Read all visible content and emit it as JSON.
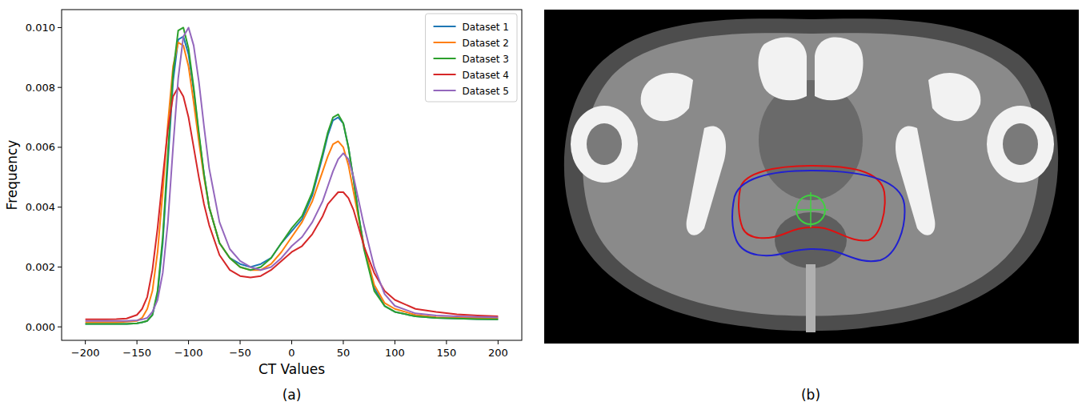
{
  "chart_data": {
    "type": "line",
    "x_label": "CT Values",
    "y_label": "Frequency",
    "panel_label": "(a)",
    "legend": "upper right",
    "grid": false,
    "xlim": [
      -223,
      223
    ],
    "xticks": [
      -200,
      -150,
      -100,
      -50,
      0,
      50,
      100,
      150,
      200
    ],
    "ylim": [
      -0.00045,
      0.0106
    ],
    "yticks": [
      {
        "value": 0,
        "label": "0.000"
      },
      {
        "value": 0.002,
        "label": "0.002"
      },
      {
        "value": 0.004,
        "label": "0.004"
      },
      {
        "value": 0.006,
        "label": "0.006"
      },
      {
        "value": 0.008,
        "label": "0.008"
      },
      {
        "value": 0.01,
        "label": "0.010"
      }
    ],
    "x": [
      -200,
      -190,
      -180,
      -170,
      -160,
      -150,
      -145,
      -140,
      -135,
      -130,
      -125,
      -120,
      -115,
      -110,
      -105,
      -100,
      -95,
      -90,
      -85,
      -80,
      -70,
      -60,
      -50,
      -40,
      -30,
      -20,
      -10,
      0,
      10,
      20,
      30,
      35,
      40,
      45,
      50,
      55,
      60,
      65,
      70,
      80,
      90,
      100,
      120,
      140,
      160,
      180,
      200
    ],
    "series": [
      {
        "name": "Dataset 1",
        "color": "#1f77b4",
        "values": [
          0.0001,
          0.0001,
          0.0001,
          0.0001,
          0.0001,
          0.00012,
          0.00015,
          0.0002,
          0.0004,
          0.0011,
          0.0028,
          0.0055,
          0.0082,
          0.0096,
          0.0097,
          0.0091,
          0.0079,
          0.0064,
          0.0051,
          0.004,
          0.0028,
          0.0023,
          0.0021,
          0.002,
          0.0021,
          0.0023,
          0.0028,
          0.0032,
          0.0036,
          0.0044,
          0.0057,
          0.0064,
          0.0069,
          0.007,
          0.0068,
          0.006,
          0.0049,
          0.0037,
          0.0027,
          0.0013,
          0.0007,
          0.0005,
          0.00035,
          0.0003,
          0.00028,
          0.00026,
          0.00025
        ]
      },
      {
        "name": "Dataset 2",
        "color": "#ff7f0e",
        "values": [
          0.00015,
          0.00015,
          0.00015,
          0.00015,
          0.00017,
          0.0002,
          0.0003,
          0.0006,
          0.0012,
          0.0025,
          0.0045,
          0.0068,
          0.0087,
          0.0095,
          0.0094,
          0.0087,
          0.0075,
          0.0062,
          0.005,
          0.004,
          0.0028,
          0.0023,
          0.002,
          0.0019,
          0.0019,
          0.0021,
          0.0025,
          0.003,
          0.0035,
          0.0042,
          0.0052,
          0.0057,
          0.0061,
          0.0062,
          0.006,
          0.0054,
          0.0045,
          0.0036,
          0.0027,
          0.0014,
          0.0008,
          0.0006,
          0.0004,
          0.00032,
          0.0003,
          0.0003,
          0.0003
        ]
      },
      {
        "name": "Dataset 3",
        "color": "#2ca02c",
        "values": [
          0.0001,
          0.0001,
          0.0001,
          0.0001,
          0.0001,
          0.00012,
          0.00015,
          0.0002,
          0.0004,
          0.0012,
          0.003,
          0.0058,
          0.0085,
          0.0099,
          0.01,
          0.0093,
          0.008,
          0.0065,
          0.0051,
          0.004,
          0.0028,
          0.0023,
          0.002,
          0.0019,
          0.002,
          0.0023,
          0.0028,
          0.0033,
          0.0037,
          0.0045,
          0.0058,
          0.0065,
          0.007,
          0.0071,
          0.0068,
          0.006,
          0.0049,
          0.0037,
          0.0026,
          0.0012,
          0.0007,
          0.0005,
          0.00035,
          0.0003,
          0.00028,
          0.00026,
          0.00025
        ]
      },
      {
        "name": "Dataset 4",
        "color": "#d62728",
        "values": [
          0.00025,
          0.00025,
          0.00025,
          0.00026,
          0.00028,
          0.0004,
          0.0006,
          0.001,
          0.0019,
          0.0033,
          0.005,
          0.0066,
          0.0077,
          0.008,
          0.0077,
          0.007,
          0.006,
          0.005,
          0.0041,
          0.0034,
          0.0024,
          0.0019,
          0.0017,
          0.00165,
          0.0017,
          0.0019,
          0.0022,
          0.0025,
          0.0027,
          0.0031,
          0.0037,
          0.0041,
          0.0043,
          0.0045,
          0.0045,
          0.0043,
          0.0039,
          0.0033,
          0.0027,
          0.0018,
          0.0012,
          0.0009,
          0.0006,
          0.0005,
          0.00042,
          0.00038,
          0.00035
        ]
      },
      {
        "name": "Dataset 5",
        "color": "#9467bd",
        "values": [
          0.0002,
          0.0002,
          0.0002,
          0.0002,
          0.0002,
          0.00022,
          0.00025,
          0.0003,
          0.0005,
          0.0009,
          0.0018,
          0.0035,
          0.006,
          0.0083,
          0.0097,
          0.01,
          0.0094,
          0.0082,
          0.0067,
          0.0053,
          0.0035,
          0.0026,
          0.0022,
          0.002,
          0.0019,
          0.002,
          0.0023,
          0.0027,
          0.003,
          0.0035,
          0.0042,
          0.0047,
          0.0052,
          0.0056,
          0.0058,
          0.0056,
          0.005,
          0.0042,
          0.0034,
          0.002,
          0.0011,
          0.0007,
          0.00045,
          0.00038,
          0.00035,
          0.00033,
          0.00032
        ]
      }
    ]
  },
  "image_panel": {
    "label": "(b)"
  }
}
